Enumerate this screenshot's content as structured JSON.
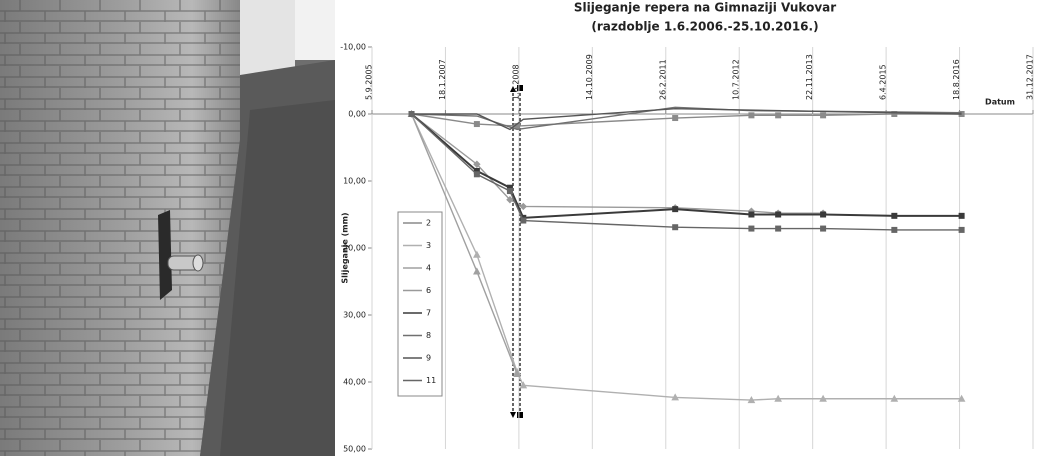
{
  "chart_data": {
    "type": "line",
    "title": "Slijeganje repera na Gimnaziji Vukovar",
    "subtitle": "(razdoblje 1.6.2006.-25.10.2016.)",
    "y_label": "Slijeganje (mm)",
    "x_label": "Datum",
    "inverted_y": true,
    "grid": true,
    "xlim": [
      "2005-09-05",
      "2017-12-31"
    ],
    "xticks": [
      {
        "value": "2005-09-05",
        "label": "5.9.2005"
      },
      {
        "value": "2007-01-18",
        "label": "18.1.2007"
      },
      {
        "value": "2008-06-01",
        "label": "1.6.2008"
      },
      {
        "value": "2009-10-14",
        "label": "14.10.2009"
      },
      {
        "value": "2011-02-26",
        "label": "26.2.2011"
      },
      {
        "value": "2012-07-10",
        "label": "10.7.2012"
      },
      {
        "value": "2013-11-22",
        "label": "22.11.2013"
      },
      {
        "value": "2015-04-06",
        "label": "6.4.2015"
      },
      {
        "value": "2016-08-18",
        "label": "18.8.2016"
      },
      {
        "value": "2017-12-31",
        "label": "31.12.2017"
      }
    ],
    "ylim": [
      -10,
      50
    ],
    "yticks": [
      {
        "value": -10,
        "label": "-10,00"
      },
      {
        "value": 0,
        "label": "0,00"
      },
      {
        "value": 10,
        "label": "10,00"
      },
      {
        "value": 20,
        "label": "20,00"
      },
      {
        "value": 30,
        "label": "30,00"
      },
      {
        "value": 40,
        "label": "40,00"
      },
      {
        "value": 50,
        "label": "50,00"
      }
    ],
    "series": [
      {
        "name": "2",
        "color": "#8a8a8a",
        "marker": "square",
        "x": [
          "2006-06-01",
          "2007-08-20",
          "2008-05-20",
          "2011-05-01",
          "2012-10-01",
          "2013-04-01",
          "2014-02-01",
          "2015-06-01",
          "2016-09-01"
        ],
        "values": [
          0,
          1.5,
          1.8,
          0.6,
          0.2,
          0.2,
          0.2,
          0,
          0
        ]
      },
      {
        "name": "3",
        "color": "#b0b0b0",
        "marker": "triangle",
        "x": [
          "2006-06-01",
          "2007-08-20",
          "2008-05-20",
          "2008-07-01",
          "2011-05-01",
          "2012-10-01",
          "2013-04-01",
          "2014-02-01",
          "2015-06-01",
          "2016-09-01"
        ],
        "values": [
          0,
          21,
          38.5,
          40.5,
          42.3,
          42.7,
          42.5,
          42.5,
          42.5,
          42.5
        ]
      },
      {
        "name": "4",
        "color": "#a0a0a0",
        "marker": "triangle",
        "x": [
          "2006-06-01",
          "2007-08-20",
          "2008-05-20"
        ],
        "values": [
          0,
          23.5,
          38.8
        ]
      },
      {
        "name": "6",
        "color": "#9a9a9a",
        "marker": "diamond",
        "x": [
          "2006-06-01",
          "2007-08-20",
          "2008-04-01",
          "2008-07-01",
          "2011-05-01",
          "2012-10-01",
          "2013-04-01",
          "2014-02-01"
        ],
        "values": [
          0,
          7.5,
          12.8,
          13.8,
          14,
          14.5,
          14.8,
          14.8
        ]
      },
      {
        "name": "7",
        "color": "#3a3a3a",
        "marker": "square",
        "x": [
          "2006-06-01",
          "2007-08-20",
          "2008-04-01",
          "2008-07-01",
          "2011-05-01",
          "2012-10-01",
          "2013-04-01",
          "2014-02-01",
          "2015-06-01",
          "2016-09-01"
        ],
        "values": [
          0,
          8.5,
          11,
          15.5,
          14.2,
          15,
          15,
          15,
          15.2,
          15.2
        ]
      },
      {
        "name": "8",
        "color": "#707070",
        "marker": "none",
        "x": [
          "2006-06-01",
          "2007-08-20",
          "2008-05-20",
          "2011-05-01",
          "2012-10-01",
          "2015-06-01",
          "2016-09-01"
        ],
        "values": [
          0,
          0.3,
          2.3,
          -1,
          -0.5,
          -0.3,
          -0.2
        ]
      },
      {
        "name": "9",
        "color": "#555555",
        "marker": "none",
        "x": [
          "2006-06-01",
          "2007-08-20",
          "2008-04-01",
          "2008-07-01",
          "2011-05-01",
          "2016-09-01"
        ],
        "values": [
          0,
          0,
          2.3,
          0.8,
          -0.8,
          0
        ]
      },
      {
        "name": "11",
        "color": "#666666",
        "marker": "square",
        "x": [
          "2006-06-01",
          "2007-08-20",
          "2008-04-01",
          "2008-07-01",
          "2011-05-01",
          "2012-10-01",
          "2013-04-01",
          "2014-02-01",
          "2015-06-01",
          "2016-09-01"
        ],
        "values": [
          0,
          9,
          11.5,
          15.9,
          16.9,
          17.1,
          17.1,
          17.1,
          17.3,
          17.3
        ]
      }
    ]
  }
}
